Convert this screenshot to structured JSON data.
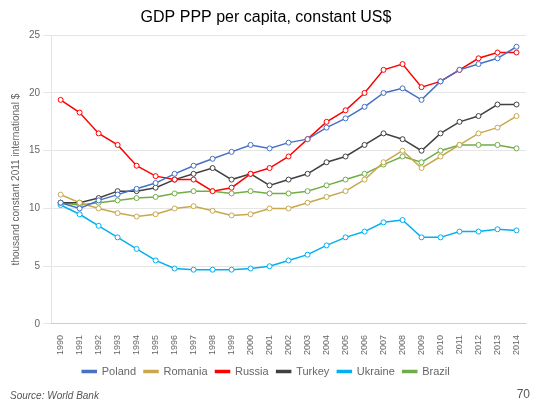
{
  "chart_data": {
    "type": "line",
    "title": "GDP PPP per capita, constant US$",
    "ylabel": "thousand constant 2011 international $",
    "annotations": [
      "Source: World Bank",
      "70"
    ],
    "x": [
      1990,
      1991,
      1992,
      1993,
      1994,
      1995,
      1996,
      1997,
      1998,
      1999,
      2000,
      2001,
      2002,
      2003,
      2004,
      2005,
      2006,
      2007,
      2008,
      2009,
      2010,
      2011,
      2012,
      2013,
      2014
    ],
    "series": [
      {
        "name": "Poland",
        "color": "#4472C4",
        "values": [
          10.5,
          10.0,
          10.7,
          11.2,
          11.7,
          12.2,
          13.0,
          13.7,
          14.3,
          14.9,
          15.5,
          15.2,
          15.7,
          16.0,
          17.0,
          17.8,
          18.8,
          20.0,
          20.4,
          19.4,
          21.0,
          22.0,
          22.5,
          23.0,
          24.0
        ]
      },
      {
        "name": "Romania",
        "color": "#C8A84B",
        "values": [
          11.2,
          10.5,
          10.0,
          9.6,
          9.3,
          9.5,
          10.0,
          10.2,
          9.8,
          9.4,
          9.5,
          10.0,
          10.0,
          10.5,
          11.0,
          11.5,
          12.5,
          14.0,
          15.0,
          13.5,
          14.5,
          15.5,
          16.5,
          17.0,
          18.0
        ]
      },
      {
        "name": "Russia",
        "color": "#FF0000",
        "values": [
          19.4,
          18.3,
          16.5,
          15.5,
          13.7,
          12.8,
          12.5,
          12.5,
          11.5,
          11.8,
          13.0,
          13.5,
          14.5,
          16.0,
          17.5,
          18.5,
          20.0,
          22.0,
          22.5,
          20.5,
          21.0,
          22.0,
          23.0,
          23.5,
          23.5
        ]
      },
      {
        "name": "Turkey",
        "color": "#404040",
        "values": [
          10.5,
          10.5,
          10.9,
          11.5,
          11.5,
          11.8,
          12.5,
          13.0,
          13.5,
          12.5,
          13.0,
          12.0,
          12.5,
          13.0,
          14.0,
          14.5,
          15.5,
          16.5,
          16.0,
          15.0,
          16.5,
          17.5,
          18.0,
          19.0,
          19.0
        ]
      },
      {
        "name": "Ukraine",
        "color": "#00B0F0",
        "values": [
          10.3,
          9.5,
          8.5,
          7.5,
          6.5,
          5.5,
          4.8,
          4.7,
          4.7,
          4.7,
          4.8,
          5.0,
          5.5,
          6.0,
          6.8,
          7.5,
          8.0,
          8.8,
          9.0,
          7.5,
          7.5,
          8.0,
          8.0,
          8.2,
          8.1
        ]
      },
      {
        "name": "Brazil",
        "color": "#70AD47",
        "values": [
          10.5,
          10.3,
          10.5,
          10.7,
          10.9,
          11.0,
          11.3,
          11.5,
          11.5,
          11.3,
          11.5,
          11.3,
          11.3,
          11.5,
          12.0,
          12.5,
          13.0,
          13.8,
          14.5,
          14.0,
          15.0,
          15.5,
          15.5,
          15.5,
          15.2
        ]
      }
    ],
    "xlim": [
      1989.5,
      2014.5
    ],
    "xticks": [
      1990,
      1991,
      1992,
      1993,
      1994,
      1995,
      1996,
      1997,
      1998,
      1999,
      2000,
      2001,
      2002,
      2003,
      2004,
      2005,
      2006,
      2007,
      2008,
      2009,
      2010,
      2011,
      2012,
      2013,
      2014
    ],
    "ylim": [
      0,
      25
    ],
    "yticks": [
      0,
      5,
      10,
      15,
      20,
      25
    ],
    "marker": "circle",
    "grid": true,
    "legend": "bottom"
  }
}
